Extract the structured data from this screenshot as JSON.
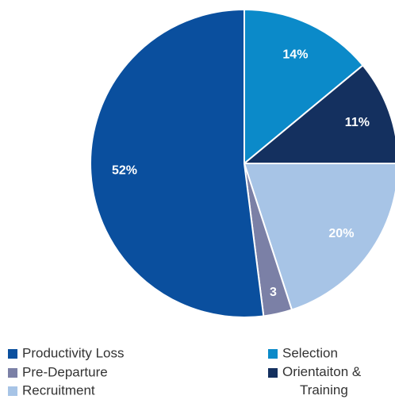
{
  "chart_data": {
    "type": "pie",
    "series": [
      {
        "name": "Selection",
        "color": "#0b8ac9",
        "values": [
          14
        ],
        "value_labels": [
          "14%"
        ]
      },
      {
        "name": "Orientaiton & Training",
        "color": "#14305f",
        "values": [
          11
        ],
        "value_labels": [
          "11%"
        ]
      },
      {
        "name": "Recruitment",
        "color": "#a7c4e6",
        "values": [
          20
        ],
        "value_labels": [
          "20%"
        ]
      },
      {
        "name": "Pre-Departure",
        "color": "#7b80a6",
        "values": [
          3
        ],
        "value_labels": [
          "3"
        ]
      },
      {
        "name": "Productivity Loss",
        "color": "#0a4f9e",
        "values": [
          52
        ],
        "value_labels": [
          "52%"
        ]
      }
    ]
  }
}
